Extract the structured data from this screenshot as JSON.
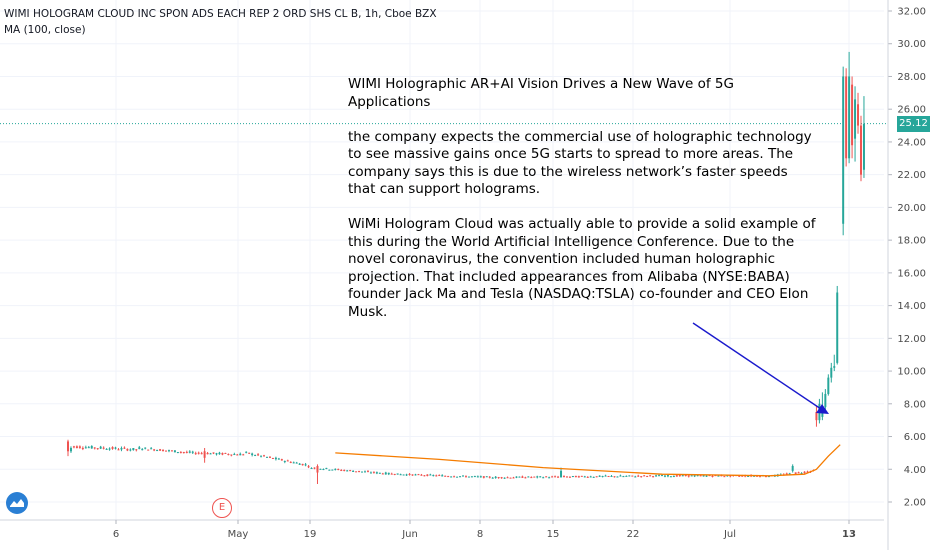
{
  "header": {
    "symbol_line": "WIMI HOLOGRAM CLOUD INC SPON ADS EACH REP 2 ORD SHS CL B, 1h, Cboe BZX",
    "indicator_line": "MA (100, close)"
  },
  "annotation": {
    "paragraphs": [
      "WIMI Holographic AR+AI Vision Drives a New Wave of 5G Applications",
      "the company expects the commercial use of holographic technology to see massive gains once 5G starts to spread to more areas. The company says this is due to the wireless network’s faster speeds that can support holograms.",
      "WiMi Hologram Cloud was actually able to provide a solid example of this during the World Artificial Intelligence Conference. Due to the novel coronavirus, the convention included human holographic projection. That included appearances from Alibaba (NYSE:BABA) founder Jack Ma and Tesla (NASDAQ:TSLA) co-founder and CEO Elon Musk."
    ]
  },
  "price_label": "25.12",
  "event_marker": "E",
  "colors": {
    "up": "#26a69a",
    "down": "#ef5350",
    "ma": "#f57c00",
    "arrow": "#1a1acc",
    "last_price": "#26a69a"
  },
  "chart_data": {
    "type": "candlestick",
    "interval": "1h",
    "y_range": [
      1.0,
      33.0
    ],
    "y_ticks": [
      "32.00",
      "30.00",
      "28.00",
      "26.00",
      "24.00",
      "22.00",
      "20.00",
      "18.00",
      "16.00",
      "14.00",
      "12.00",
      "10.00",
      "8.00",
      "6.00",
      "4.00",
      "2.00"
    ],
    "x_ticks": [
      "6",
      "May",
      "19",
      "Jun",
      "8",
      "15",
      "22",
      "Jul",
      "13"
    ],
    "last_price": 25.12,
    "series": [
      {
        "name": "price",
        "segments": [
          {
            "from": [
              0,
              5.4
            ],
            "to": [
              24,
              5.2
            ],
            "vol": 0.18
          },
          {
            "from": [
              24,
              5.3
            ],
            "to": [
              42,
              5.0
            ],
            "vol": 0.15
          },
          {
            "from": [
              42,
              5.0
            ],
            "to": [
              60,
              4.9
            ],
            "vol": 0.15
          },
          {
            "from": [
              60,
              5.0
            ],
            "to": [
              82,
              4.2
            ],
            "vol": 0.15
          },
          {
            "from": [
              82,
              4.1
            ],
            "to": [
              110,
              3.7
            ],
            "vol": 0.12
          },
          {
            "from": [
              110,
              3.7
            ],
            "to": [
              145,
              3.5
            ],
            "vol": 0.1
          },
          {
            "from": [
              145,
              3.5
            ],
            "to": [
              200,
              3.6
            ],
            "vol": 0.1
          },
          {
            "from": [
              200,
              3.6
            ],
            "to": [
              238,
              3.6
            ],
            "vol": 0.1
          },
          {
            "from": [
              238,
              3.6
            ],
            "to": [
              251,
              3.9
            ],
            "vol": 0.12
          }
        ]
      },
      {
        "name": "MA (100, close)",
        "points": [
          [
            90,
            5.0
          ],
          [
            125,
            4.6
          ],
          [
            160,
            4.1
          ],
          [
            200,
            3.7
          ],
          [
            236,
            3.6
          ],
          [
            248,
            3.7
          ],
          [
            252,
            4.0
          ],
          [
            256,
            4.8
          ],
          [
            260,
            5.5
          ]
        ]
      }
    ],
    "events": [
      {
        "i": 0,
        "o": 5.7,
        "c": 5.1,
        "h": 5.8,
        "l": 4.8
      },
      {
        "i": 1,
        "o": 5.1,
        "c": 5.3,
        "h": 5.4,
        "l": 5.0
      },
      {
        "i": 46,
        "o": 5.1,
        "c": 4.7,
        "h": 5.3,
        "l": 4.4
      },
      {
        "i": 84,
        "o": 4.2,
        "c": 3.8,
        "h": 4.3,
        "l": 3.1
      },
      {
        "i": 166,
        "o": 3.5,
        "c": 3.9,
        "h": 4.1,
        "l": 3.5
      },
      {
        "i": 244,
        "o": 3.9,
        "c": 4.2,
        "h": 4.3,
        "l": 3.8
      },
      {
        "i": 252,
        "o": 7.5,
        "c": 7.0,
        "h": 7.9,
        "l": 6.6
      },
      {
        "i": 253,
        "o": 7.0,
        "c": 8.0,
        "h": 8.3,
        "l": 6.8
      },
      {
        "i": 254,
        "o": 7.2,
        "c": 7.8,
        "h": 8.7,
        "l": 7.0
      },
      {
        "i": 255,
        "o": 7.8,
        "c": 8.6,
        "h": 8.9,
        "l": 7.6
      },
      {
        "i": 256,
        "o": 8.6,
        "c": 9.6,
        "h": 9.8,
        "l": 8.5
      },
      {
        "i": 257,
        "o": 9.6,
        "c": 10.2,
        "h": 10.5,
        "l": 9.3
      },
      {
        "i": 258,
        "o": 10.2,
        "c": 10.3,
        "h": 11.0,
        "l": 10.0
      },
      {
        "i": 259,
        "o": 10.5,
        "c": 14.8,
        "h": 15.2,
        "l": 10.4
      },
      {
        "i": 261,
        "o": 19.0,
        "c": 28.0,
        "h": 28.6,
        "l": 18.3
      },
      {
        "i": 262,
        "o": 28.0,
        "c": 23.0,
        "h": 28.5,
        "l": 22.5
      },
      {
        "i": 263,
        "o": 23.0,
        "c": 28.0,
        "h": 29.5,
        "l": 22.7
      },
      {
        "i": 264,
        "o": 27.5,
        "c": 23.8,
        "h": 28.0,
        "l": 23.0
      },
      {
        "i": 265,
        "o": 24.2,
        "c": 26.6,
        "h": 27.4,
        "l": 22.8
      },
      {
        "i": 266,
        "o": 26.3,
        "c": 25.0,
        "h": 27.0,
        "l": 24.5
      },
      {
        "i": 267,
        "o": 25.0,
        "c": 22.0,
        "h": 25.6,
        "l": 21.6
      },
      {
        "i": 268,
        "o": 22.3,
        "c": 25.1,
        "h": 26.8,
        "l": 21.8
      }
    ],
    "arrow": {
      "from": [
        175,
        13.4
      ],
      "to": [
        252,
        7.6
      ]
    }
  }
}
